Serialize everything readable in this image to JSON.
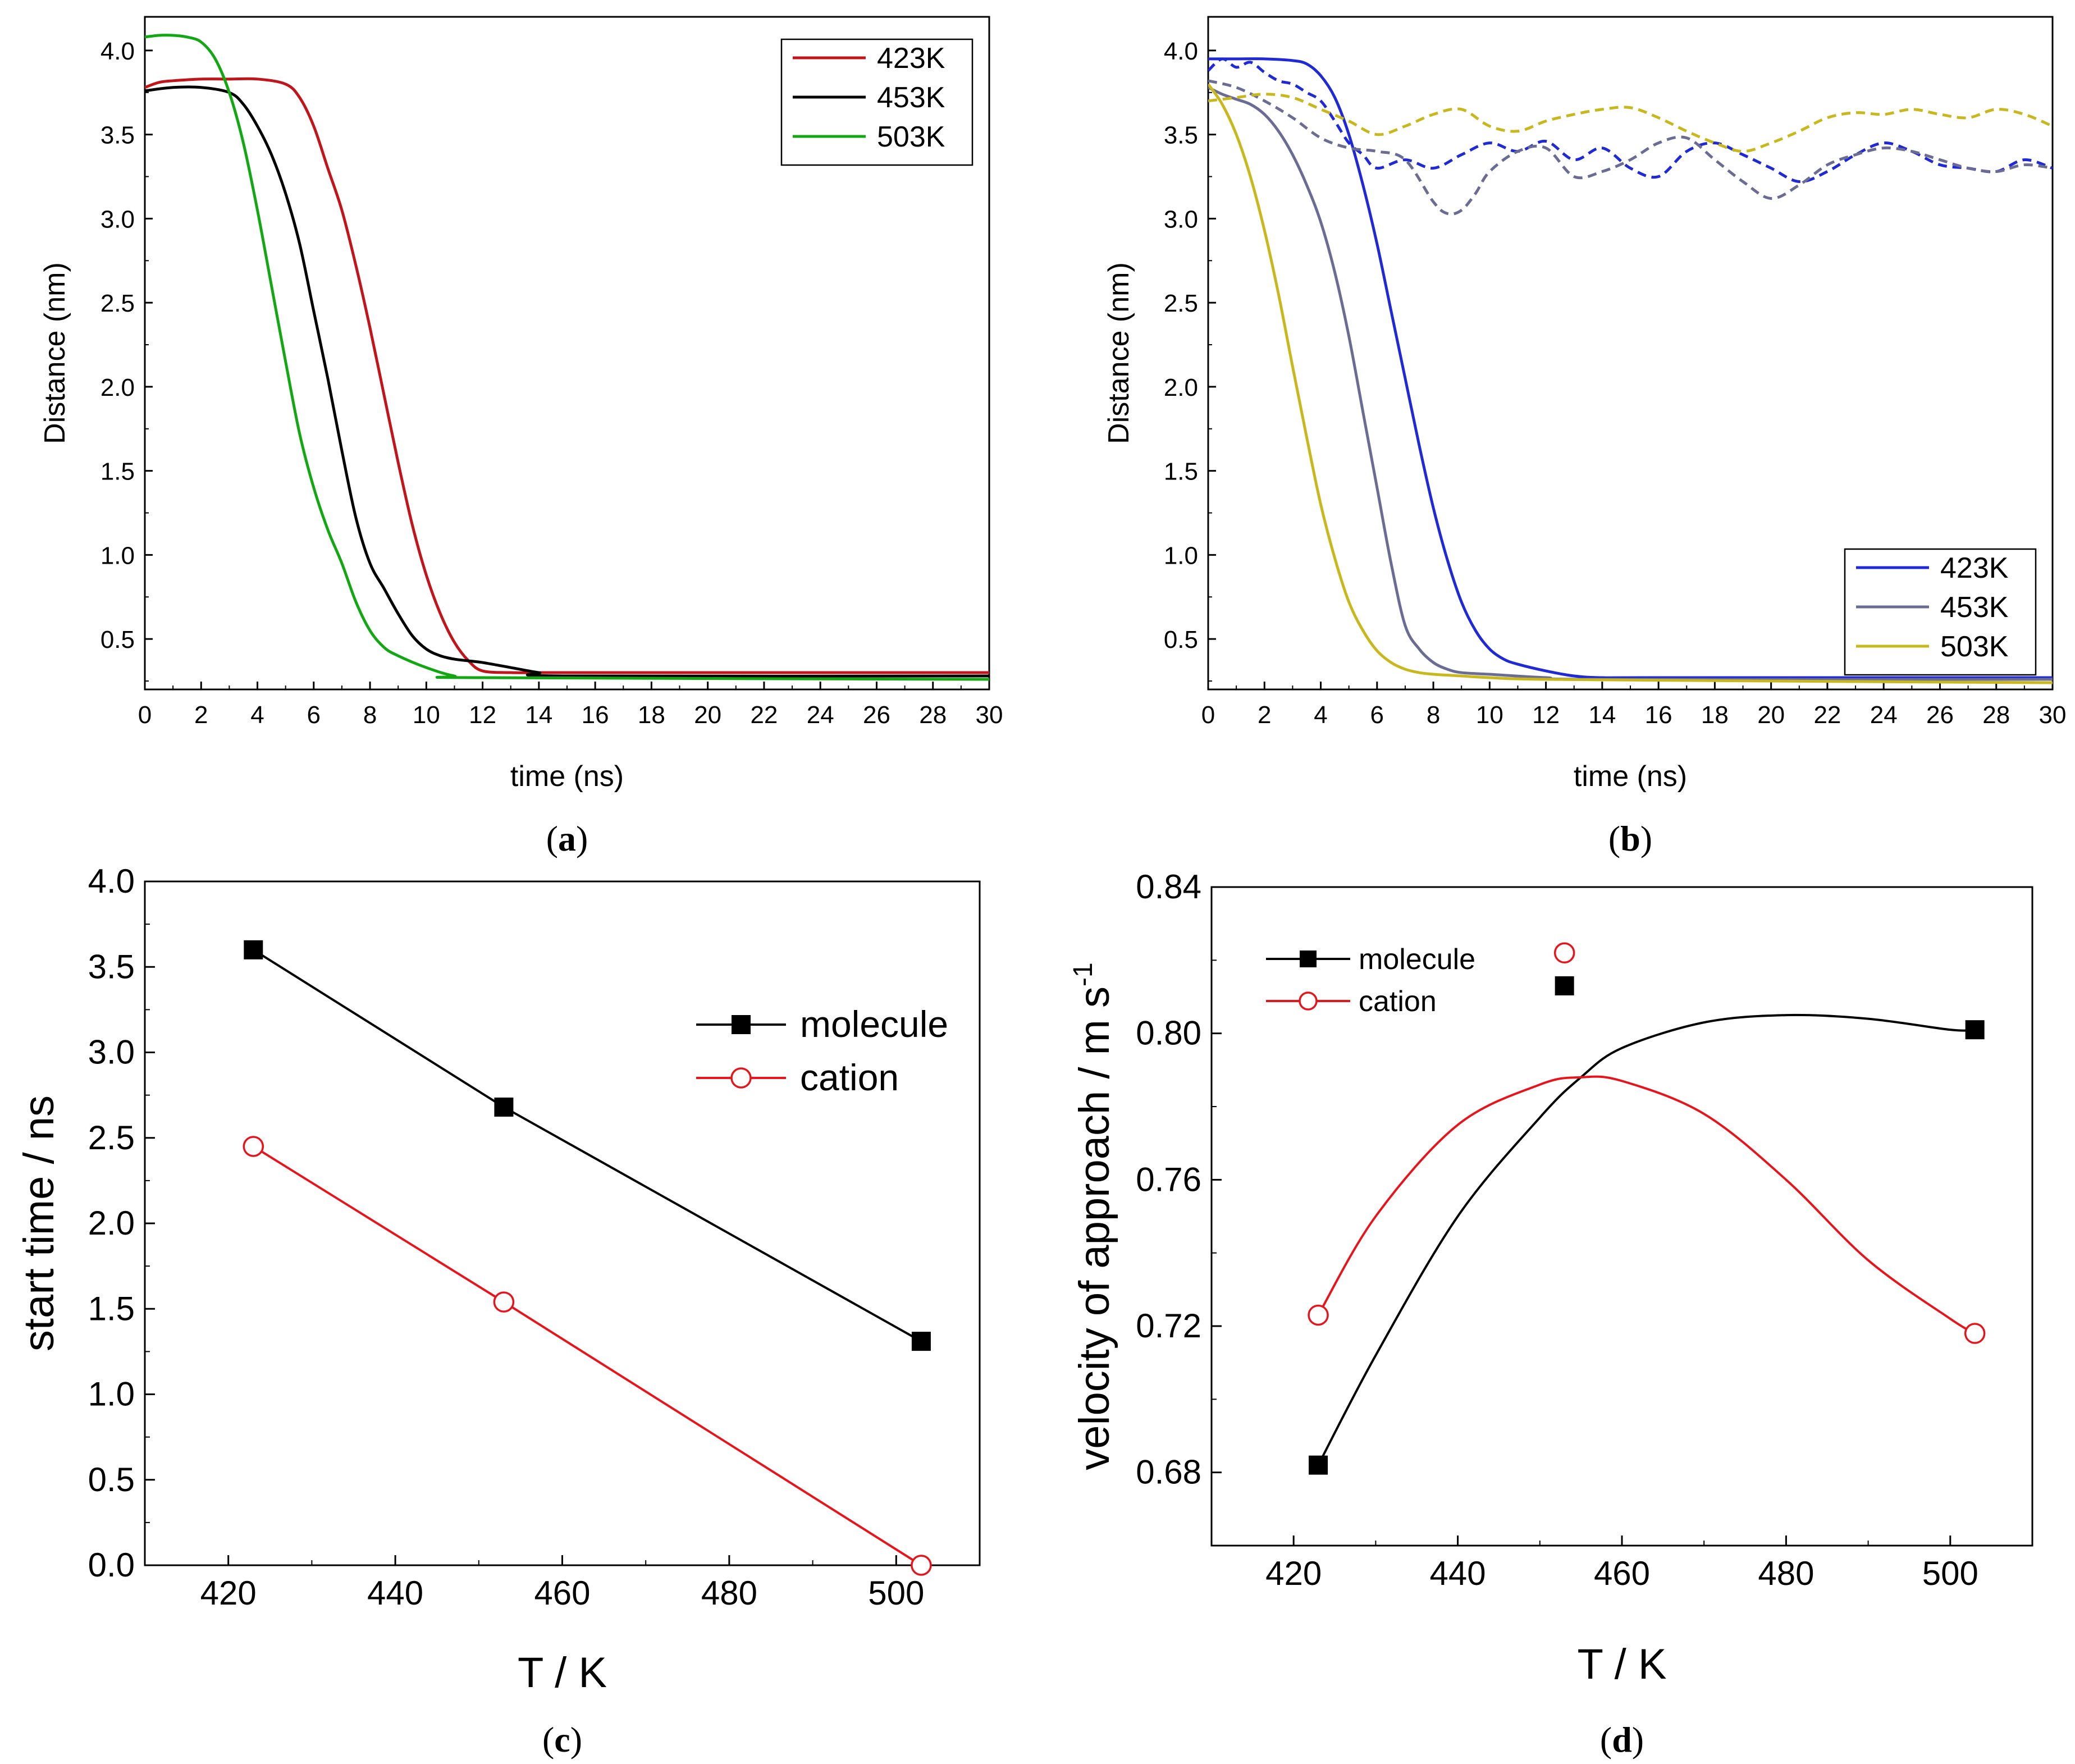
{
  "chart_data": [
    {
      "type": "line",
      "caption_open": "(",
      "caption_letter": "a",
      "caption_close": ")",
      "xlabel": "time (ns)",
      "ylabel": "Distance (nm)",
      "xlim": [
        0,
        30
      ],
      "ylim": [
        0.2,
        4.2
      ],
      "xticks": [
        "0",
        "2",
        "4",
        "6",
        "8",
        "10",
        "12",
        "14",
        "16",
        "18",
        "20",
        "22",
        "24",
        "26",
        "28",
        "30"
      ],
      "yticks": [
        "0.5",
        "1.0",
        "1.5",
        "2.0",
        "2.5",
        "3.0",
        "3.5",
        "4.0"
      ],
      "grid": false,
      "legend": "top-right",
      "series": [
        {
          "name": "423K",
          "color": "#c0161b",
          "style": "solid",
          "x": [
            0,
            0.5,
            1,
            2,
            3,
            4,
            5,
            5.5,
            6,
            6.5,
            7,
            7.5,
            8,
            8.5,
            9,
            9.5,
            10,
            10.5,
            11,
            11.5,
            12,
            13,
            14,
            15,
            30
          ],
          "y": [
            3.78,
            3.81,
            3.82,
            3.83,
            3.83,
            3.83,
            3.8,
            3.72,
            3.55,
            3.3,
            3.05,
            2.72,
            2.35,
            1.95,
            1.55,
            1.18,
            0.88,
            0.65,
            0.48,
            0.37,
            0.31,
            0.3,
            0.3,
            0.3,
            0.3
          ]
        },
        {
          "name": "453K",
          "color": "#000000",
          "style": "solid",
          "x": [
            0,
            1,
            2,
            3,
            3.5,
            4,
            4.5,
            5,
            5.5,
            6,
            6.5,
            7,
            7.5,
            8,
            8.5,
            9,
            9.5,
            10,
            10.5,
            11,
            11.5,
            12,
            13,
            14,
            15,
            30
          ],
          "y": [
            3.76,
            3.78,
            3.78,
            3.75,
            3.68,
            3.55,
            3.38,
            3.15,
            2.85,
            2.45,
            2.05,
            1.62,
            1.22,
            0.95,
            0.8,
            0.65,
            0.52,
            0.44,
            0.4,
            0.38,
            0.37,
            0.36,
            0.33,
            0.3,
            0.28,
            0.28
          ]
        },
        {
          "name": "503K",
          "color": "#13a813",
          "style": "solid",
          "x": [
            0,
            0.5,
            1,
            1.5,
            2,
            2.5,
            3,
            3.5,
            4,
            4.5,
            5,
            5.5,
            6,
            6.5,
            7,
            7.5,
            8,
            8.5,
            9,
            10,
            11,
            12,
            30
          ],
          "y": [
            4.08,
            4.09,
            4.09,
            4.08,
            4.05,
            3.95,
            3.75,
            3.45,
            3.05,
            2.6,
            2.15,
            1.72,
            1.4,
            1.15,
            0.95,
            0.72,
            0.55,
            0.45,
            0.4,
            0.33,
            0.28,
            0.27,
            0.26
          ]
        }
      ]
    },
    {
      "type": "line",
      "caption_open": "(",
      "caption_letter": "b",
      "caption_close": ")",
      "xlabel": "time (ns)",
      "ylabel": "Distance (nm)",
      "xlim": [
        0,
        30
      ],
      "ylim": [
        0.2,
        4.2
      ],
      "xticks": [
        "0",
        "2",
        "4",
        "6",
        "8",
        "10",
        "12",
        "14",
        "16",
        "18",
        "20",
        "22",
        "24",
        "26",
        "28",
        "30"
      ],
      "yticks": [
        "0.5",
        "1.0",
        "1.5",
        "2.0",
        "2.5",
        "3.0",
        "3.5",
        "4.0"
      ],
      "grid": false,
      "legend": "bottom-right",
      "series": [
        {
          "name": "423K",
          "color": "#1f2ad6",
          "style": "solid",
          "x": [
            0,
            1,
            2,
            3,
            3.5,
            4,
            4.5,
            5,
            5.5,
            6,
            6.5,
            7,
            7.5,
            8,
            8.5,
            9,
            9.5,
            10,
            10.5,
            11,
            12,
            13,
            14,
            16,
            30
          ],
          "y": [
            3.95,
            3.95,
            3.95,
            3.94,
            3.92,
            3.85,
            3.72,
            3.5,
            3.2,
            2.85,
            2.45,
            2.05,
            1.65,
            1.28,
            0.97,
            0.72,
            0.55,
            0.44,
            0.38,
            0.35,
            0.31,
            0.28,
            0.27,
            0.27,
            0.27
          ]
        },
        {
          "name": "453K",
          "color": "#6a6c93",
          "style": "solid",
          "x": [
            0,
            0.5,
            1,
            1.5,
            2,
            2.5,
            3,
            3.5,
            4,
            4.5,
            5,
            5.5,
            6,
            6.5,
            7,
            7.5,
            8,
            8.5,
            9,
            10,
            12,
            14,
            30
          ],
          "y": [
            3.78,
            3.74,
            3.71,
            3.68,
            3.62,
            3.52,
            3.38,
            3.2,
            2.98,
            2.68,
            2.3,
            1.85,
            1.4,
            0.95,
            0.58,
            0.44,
            0.36,
            0.32,
            0.3,
            0.29,
            0.27,
            0.26,
            0.26
          ]
        },
        {
          "name": "503K",
          "color": "#c8b81e",
          "style": "solid",
          "x": [
            0,
            0.5,
            1,
            1.5,
            2,
            2.5,
            3,
            3.5,
            4,
            4.5,
            5,
            5.5,
            6,
            6.5,
            7,
            7.5,
            8,
            9,
            10,
            12,
            20,
            30
          ],
          "y": [
            3.8,
            3.68,
            3.5,
            3.25,
            2.93,
            2.55,
            2.12,
            1.7,
            1.3,
            0.98,
            0.72,
            0.55,
            0.43,
            0.36,
            0.32,
            0.3,
            0.29,
            0.28,
            0.27,
            0.26,
            0.25,
            0.24
          ]
        },
        {
          "name": "",
          "color": "#1f2ad6",
          "style": "dashed",
          "x": [
            0,
            0.5,
            1,
            1.5,
            2,
            2.5,
            3,
            3.5,
            4,
            4.5,
            5,
            5.5,
            6,
            7,
            8,
            9,
            10,
            11,
            12,
            13,
            14,
            15,
            16,
            17,
            18,
            19,
            20,
            21,
            22,
            23,
            24,
            25,
            26,
            27,
            28,
            29,
            30
          ],
          "y": [
            3.88,
            3.95,
            3.9,
            3.93,
            3.87,
            3.82,
            3.8,
            3.75,
            3.7,
            3.58,
            3.45,
            3.38,
            3.3,
            3.35,
            3.3,
            3.38,
            3.45,
            3.4,
            3.46,
            3.35,
            3.42,
            3.3,
            3.25,
            3.4,
            3.45,
            3.38,
            3.3,
            3.22,
            3.28,
            3.38,
            3.45,
            3.4,
            3.32,
            3.3,
            3.28,
            3.35,
            3.3
          ]
        },
        {
          "name": "",
          "color": "#6a6c93",
          "style": "dashed",
          "x": [
            0,
            1,
            2,
            3,
            4,
            5,
            6,
            7,
            8,
            8.5,
            9,
            9.5,
            10,
            11,
            12,
            13,
            14,
            15,
            16,
            17,
            18,
            19,
            20,
            21,
            22,
            23,
            24,
            25,
            26,
            27,
            28,
            29,
            30
          ],
          "y": [
            3.82,
            3.78,
            3.7,
            3.6,
            3.48,
            3.42,
            3.4,
            3.35,
            3.1,
            3.03,
            3.05,
            3.15,
            3.28,
            3.4,
            3.42,
            3.25,
            3.28,
            3.35,
            3.45,
            3.48,
            3.35,
            3.22,
            3.12,
            3.2,
            3.32,
            3.38,
            3.42,
            3.4,
            3.35,
            3.3,
            3.28,
            3.32,
            3.3
          ]
        },
        {
          "name": "",
          "color": "#c8b81e",
          "style": "dashed",
          "x": [
            0,
            1,
            2,
            3,
            4,
            5,
            6,
            7,
            8,
            9,
            10,
            11,
            12,
            13,
            14,
            15,
            16,
            17,
            18,
            19,
            20,
            21,
            22,
            23,
            24,
            25,
            26,
            27,
            28,
            29,
            30
          ],
          "y": [
            3.7,
            3.72,
            3.74,
            3.72,
            3.65,
            3.58,
            3.5,
            3.55,
            3.62,
            3.65,
            3.55,
            3.52,
            3.58,
            3.62,
            3.65,
            3.66,
            3.6,
            3.52,
            3.45,
            3.4,
            3.45,
            3.52,
            3.6,
            3.63,
            3.62,
            3.65,
            3.62,
            3.6,
            3.65,
            3.62,
            3.55
          ]
        }
      ]
    },
    {
      "type": "line",
      "caption_open": "(",
      "caption_letter": "c",
      "caption_close": ")",
      "xlabel": "T / K",
      "ylabel": "start time / ns",
      "xlim": [
        410,
        510
      ],
      "ylim": [
        0.0,
        4.0
      ],
      "xticks": [
        "420",
        "440",
        "460",
        "480",
        "500"
      ],
      "yticks": [
        "0.0",
        "0.5",
        "1.0",
        "1.5",
        "2.0",
        "2.5",
        "3.0",
        "3.5",
        "4.0"
      ],
      "grid": false,
      "legend": "top-right",
      "series": [
        {
          "name": "molecule",
          "color": "#000000",
          "marker": "filled-square",
          "x": [
            423,
            453,
            503
          ],
          "y": [
            3.6,
            2.68,
            1.31
          ]
        },
        {
          "name": "cation",
          "color": "#e8141b",
          "marker": "open-circle",
          "x": [
            423,
            453,
            503
          ],
          "y": [
            2.45,
            1.54,
            0.0
          ]
        }
      ]
    },
    {
      "type": "line",
      "caption_open": "(",
      "caption_letter": "d",
      "caption_close": ")",
      "xlabel": "T / K",
      "ylabel": "velocity of approach / m s",
      "ylabel_sup": "-1",
      "xlim": [
        410,
        510
      ],
      "ylim": [
        0.66,
        0.84
      ],
      "xticks": [
        "420",
        "440",
        "460",
        "480",
        "500"
      ],
      "yticks": [
        "0.68",
        "0.72",
        "0.76",
        "0.80",
        "0.84"
      ],
      "grid": false,
      "legend": "top-left",
      "series": [
        {
          "name": "molecule",
          "color": "#000000",
          "marker": "filled-square",
          "x": [
            423,
            453,
            503
          ],
          "y": [
            0.682,
            0.813,
            0.801
          ],
          "curve_x": [
            423,
            430,
            440,
            450,
            455,
            460,
            470,
            480,
            490,
            500,
            503
          ],
          "curve_y": [
            0.682,
            0.712,
            0.75,
            0.777,
            0.788,
            0.796,
            0.803,
            0.805,
            0.804,
            0.801,
            0.801
          ]
        },
        {
          "name": "cation",
          "color": "#e8141b",
          "marker": "open-circle",
          "x": [
            423,
            453,
            503
          ],
          "y": [
            0.723,
            0.822,
            0.718
          ],
          "curve_x": [
            423,
            430,
            440,
            450,
            455,
            460,
            470,
            480,
            490,
            500,
            503
          ],
          "curve_y": [
            0.723,
            0.75,
            0.775,
            0.786,
            0.788,
            0.787,
            0.778,
            0.76,
            0.738,
            0.722,
            0.718
          ]
        }
      ]
    }
  ]
}
